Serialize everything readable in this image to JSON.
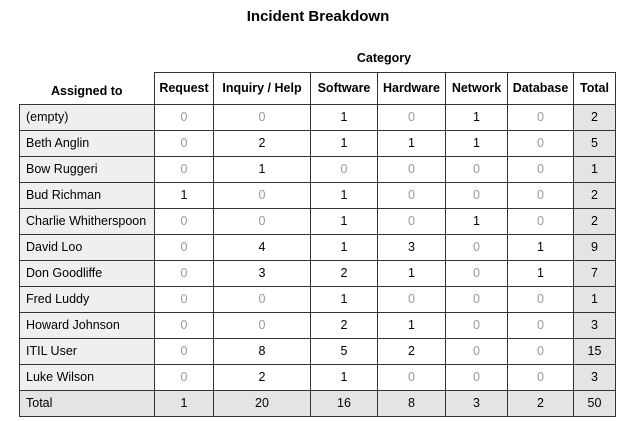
{
  "title": "Incident Breakdown",
  "category_label": "Category",
  "row_header": "Assigned to",
  "columns": [
    "Request",
    "Inquiry / Help",
    "Software",
    "Hardware",
    "Network",
    "Database",
    "Total"
  ],
  "rows": [
    {
      "name": "(empty)",
      "values": [
        0,
        0,
        1,
        0,
        1,
        0,
        2
      ]
    },
    {
      "name": "Beth Anglin",
      "values": [
        0,
        2,
        1,
        1,
        1,
        0,
        5
      ]
    },
    {
      "name": "Bow Ruggeri",
      "values": [
        0,
        1,
        0,
        0,
        0,
        0,
        1
      ]
    },
    {
      "name": "Bud Richman",
      "values": [
        1,
        0,
        1,
        0,
        0,
        0,
        2
      ]
    },
    {
      "name": "Charlie Whitherspoon",
      "values": [
        0,
        0,
        1,
        0,
        1,
        0,
        2
      ]
    },
    {
      "name": "David Loo",
      "values": [
        0,
        4,
        1,
        3,
        0,
        1,
        9
      ]
    },
    {
      "name": "Don Goodliffe",
      "values": [
        0,
        3,
        2,
        1,
        0,
        1,
        7
      ]
    },
    {
      "name": "Fred Luddy",
      "values": [
        0,
        0,
        1,
        0,
        0,
        0,
        1
      ]
    },
    {
      "name": "Howard Johnson",
      "values": [
        0,
        0,
        2,
        1,
        0,
        0,
        3
      ]
    },
    {
      "name": "ITIL User",
      "values": [
        0,
        8,
        5,
        2,
        0,
        0,
        15
      ]
    },
    {
      "name": "Luke Wilson",
      "values": [
        0,
        2,
        1,
        0,
        0,
        0,
        3
      ]
    }
  ],
  "total_row": {
    "name": "Total",
    "values": [
      1,
      20,
      16,
      8,
      3,
      2,
      50
    ]
  },
  "colors": {
    "zero_text": "#9a9a9a",
    "name_bg": "#efefef",
    "total_bg": "#e4e4e4",
    "border": "#333333"
  }
}
